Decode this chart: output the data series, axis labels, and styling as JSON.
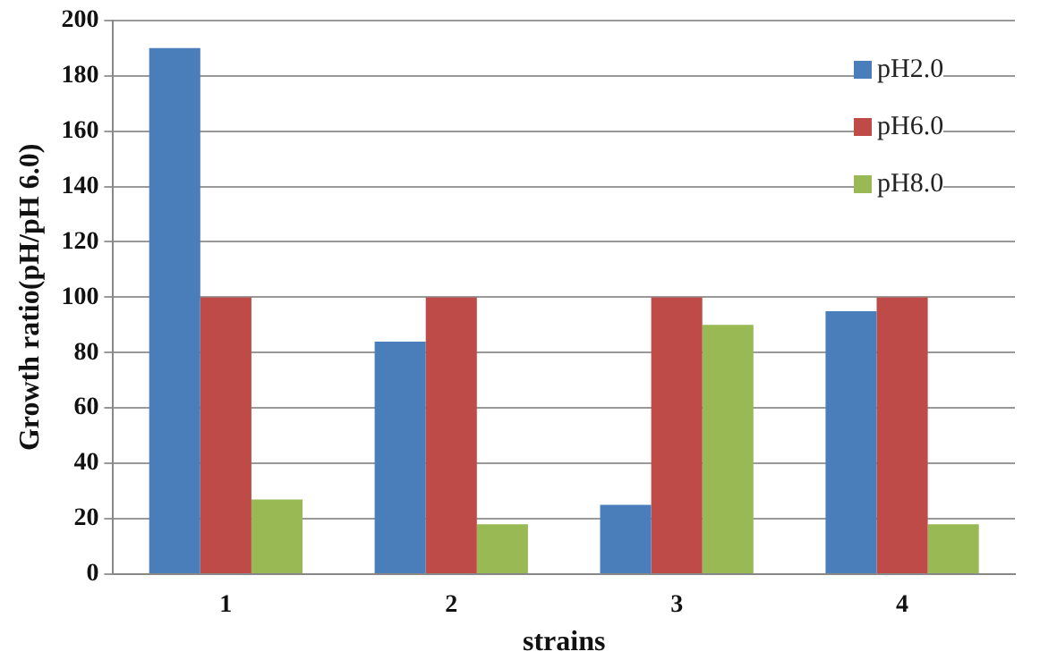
{
  "chart_data": {
    "type": "bar",
    "xlabel": "strains",
    "ylabel": "Growth ratio(pH/pH 6.0)",
    "categories": [
      "1",
      "2",
      "3",
      "4"
    ],
    "series": [
      {
        "name": "pH2.0",
        "color": "#4a7ebb",
        "values": [
          190,
          84,
          25,
          95
        ]
      },
      {
        "name": "pH6.0",
        "color": "#be4b48",
        "values": [
          100,
          100,
          100,
          100
        ]
      },
      {
        "name": "pH8.0",
        "color": "#98b954",
        "values": [
          27,
          18,
          90,
          18
        ]
      }
    ],
    "ylim": [
      0,
      200
    ],
    "yticks": [
      0,
      20,
      40,
      60,
      80,
      100,
      120,
      140,
      160,
      180,
      200
    ],
    "grid": "y",
    "legend": "top right"
  }
}
